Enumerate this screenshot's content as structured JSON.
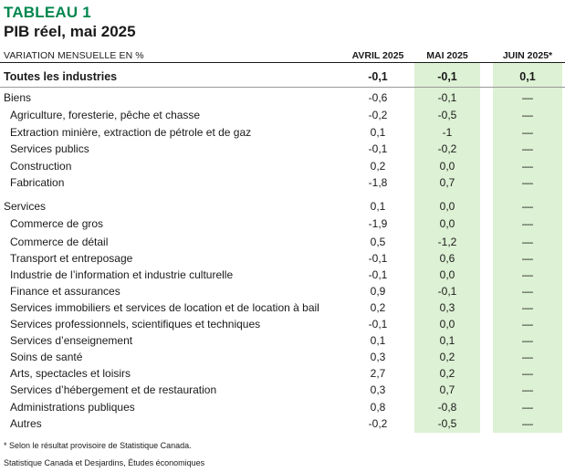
{
  "title": {
    "label": "TABLEAU 1",
    "main": "PIB réel, mai 2025"
  },
  "header": {
    "left": "VARIATION MENSUELLE EN %",
    "col1": "AVRIL 2025",
    "col2": "MAI 2025",
    "col3": "JUIN 2025*"
  },
  "rows": [
    {
      "label": "Toutes les industries",
      "v1": "-0,1",
      "v2": "-0,1",
      "v3": "0,1"
    },
    {
      "label": "Biens",
      "v1": "-0,6",
      "v2": "-0,1",
      "v3": "—"
    },
    {
      "label": "Agriculture, foresterie, pêche et chasse",
      "v1": "-0,2",
      "v2": "-0,5",
      "v3": "—"
    },
    {
      "label": "Extraction minière, extraction de pétrole et de gaz",
      "v1": "0,1",
      "v2": "-1",
      "v3": "—"
    },
    {
      "label": "Services publics",
      "v1": "-0,1",
      "v2": "-0,2",
      "v3": "—"
    },
    {
      "label": "Construction",
      "v1": "0,2",
      "v2": "0,0",
      "v3": "—"
    },
    {
      "label": "Fabrication",
      "v1": "-1,8",
      "v2": "0,7",
      "v3": "—"
    },
    {
      "label": "Services",
      "v1": "0,1",
      "v2": "0,0",
      "v3": "—"
    },
    {
      "label": "Commerce de gros",
      "v1": "-1,9",
      "v2": "0,0",
      "v3": "—"
    },
    {
      "label": "Commerce de détail",
      "v1": "0,5",
      "v2": "-1,2",
      "v3": "—"
    },
    {
      "label": "Transport et entreposage",
      "v1": "-0,1",
      "v2": "0,6",
      "v3": "—"
    },
    {
      "label": "Industrie de l’information et industrie culturelle",
      "v1": "-0,1",
      "v2": "0,0",
      "v3": "—"
    },
    {
      "label": "Finance et assurances",
      "v1": "0,9",
      "v2": "-0,1",
      "v3": "—"
    },
    {
      "label": "Services immobiliers et services de location et de location à bail",
      "v1": "0,2",
      "v2": "0,3",
      "v3": "—"
    },
    {
      "label": "Services professionnels, scientifiques et techniques",
      "v1": "-0,1",
      "v2": "0,0",
      "v3": "—"
    },
    {
      "label": "Services d’enseignement",
      "v1": "0,1",
      "v2": "0,1",
      "v3": "—"
    },
    {
      "label": "Soins de santé",
      "v1": "0,3",
      "v2": "0,2",
      "v3": "—"
    },
    {
      "label": "Arts, spectacles et loisirs",
      "v1": "2,7",
      "v2": "0,2",
      "v3": "—"
    },
    {
      "label": "Services d’hébergement et de restauration",
      "v1": "0,3",
      "v2": "0,7",
      "v3": "—"
    },
    {
      "label": "Administrations publiques",
      "v1": "0,8",
      "v2": "-0,8",
      "v3": "—"
    },
    {
      "label": "Autres",
      "v1": "-0,2",
      "v2": "-0,5",
      "v3": "—"
    }
  ],
  "footnote": "* Selon le résultat provisoire de Statistique Canada.",
  "source": "Statistique Canada et Desjardins, Études économiques",
  "colors": {
    "title_green": "#00874e",
    "shade": "#ddf1d4"
  }
}
